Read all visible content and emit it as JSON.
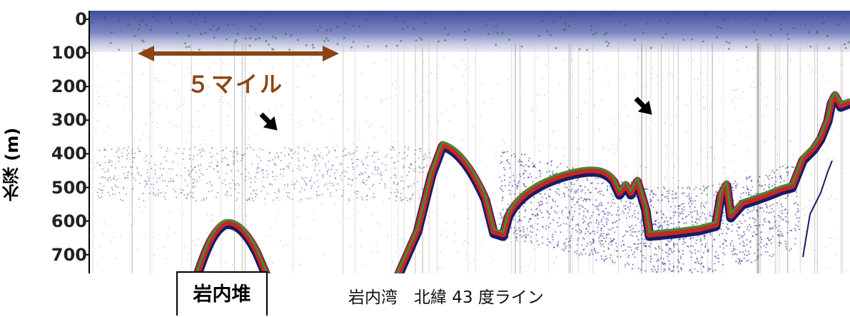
{
  "figure": {
    "y_axis_label": "水深 (m)",
    "y_ticks": [
      "0",
      "100",
      "200",
      "300",
      "400",
      "500",
      "600",
      "700"
    ],
    "y_range_m": [
      0,
      760
    ],
    "scale_bar_label": "５マイル",
    "bank_label": "岩内堆",
    "caption": "岩内湾　北緯 43 度ライン",
    "icons": [
      "double-headed-arrow-icon",
      "pointer-arrow-icon",
      "pointer-arrow-icon"
    ]
  },
  "colors": {
    "scale_bar": "#8b4513",
    "echo_blue": "#2a2a9a",
    "seabed_red": "#c8281e",
    "seabed_green": "#3c8c3c",
    "tick_text": "#222222"
  }
}
